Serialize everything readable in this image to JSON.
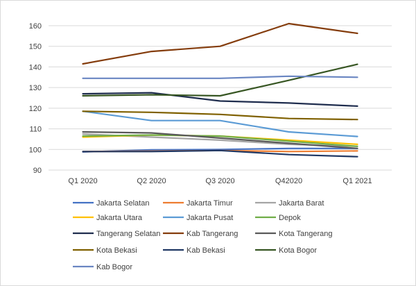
{
  "chart_data": {
    "type": "line",
    "categories": [
      "Q1 2020",
      "Q2 2020",
      "Q3 2020",
      "Q42020",
      "Q1 2021"
    ],
    "ylim": [
      90,
      160
    ],
    "yticks": [
      90,
      100,
      110,
      120,
      130,
      140,
      150,
      160
    ],
    "grid": true,
    "legend_position": "bottom",
    "series": [
      {
        "name": "Jakarta Selatan",
        "color": "#4472C4",
        "values": [
          98.8,
          99.8,
          100.0,
          100.5,
          100.5
        ]
      },
      {
        "name": "Jakarta Timur",
        "color": "#ED7D31",
        "values": [
          99.0,
          99.2,
          99.5,
          99.0,
          99.3
        ]
      },
      {
        "name": "Jakarta Barat",
        "color": "#A5A5A5",
        "values": [
          107.5,
          106.0,
          104.5,
          102.5,
          101.5
        ]
      },
      {
        "name": "Jakarta Utara",
        "color": "#FFC000",
        "values": [
          106.0,
          107.0,
          106.5,
          104.5,
          102.5
        ]
      },
      {
        "name": "Jakarta Pusat",
        "color": "#5B9BD5",
        "values": [
          118.5,
          114.0,
          114.0,
          108.5,
          106.3
        ]
      },
      {
        "name": "Depok",
        "color": "#70AD47",
        "values": [
          106.5,
          107.0,
          106.5,
          104.0,
          101.5
        ]
      },
      {
        "name": "Tangerang Selatan",
        "color": "#1F2D4E",
        "values": [
          127.0,
          127.5,
          123.5,
          122.5,
          121.0
        ]
      },
      {
        "name": "Kab Tangerang",
        "color": "#843C0C",
        "values": [
          141.5,
          147.5,
          150.0,
          161.0,
          156.3
        ]
      },
      {
        "name": "Kota Tangerang",
        "color": "#595959",
        "values": [
          108.5,
          108.0,
          105.5,
          103.0,
          100.5
        ]
      },
      {
        "name": "Kota Bekasi",
        "color": "#7F6000",
        "values": [
          118.5,
          118.0,
          117.0,
          115.0,
          114.5
        ]
      },
      {
        "name": "Kab Bekasi",
        "color": "#203864",
        "values": [
          99.0,
          99.0,
          99.5,
          97.5,
          96.5
        ]
      },
      {
        "name": "Kota Bogor",
        "color": "#375623",
        "values": [
          126.0,
          126.5,
          126.0,
          133.5,
          141.3
        ]
      },
      {
        "name": "Kab Bogor",
        "color": "#6A86C2",
        "values": [
          134.5,
          134.5,
          134.5,
          135.5,
          135.0
        ]
      }
    ]
  }
}
